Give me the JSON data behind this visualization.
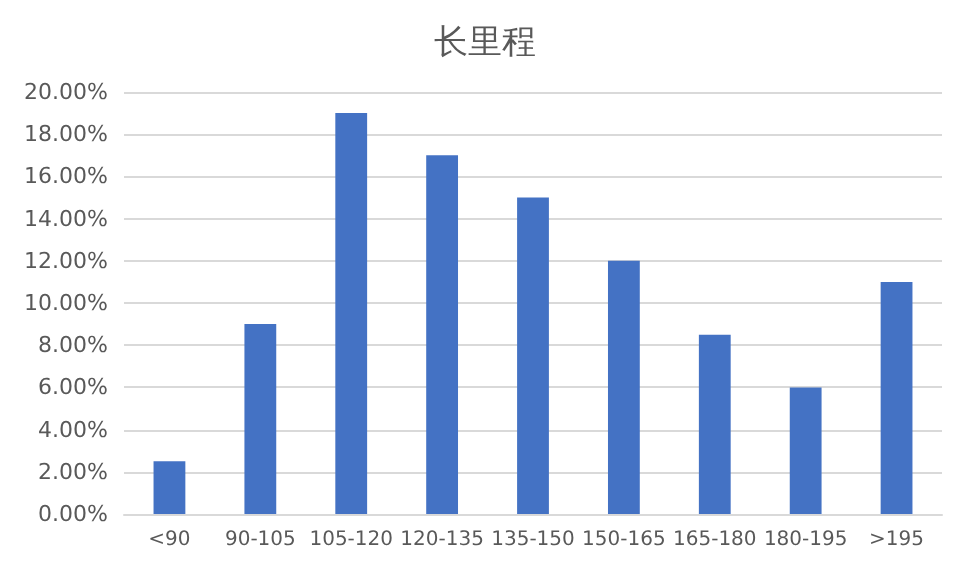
{
  "chart_data": {
    "type": "bar",
    "title": "长里程",
    "categories": [
      "<90",
      "90-105",
      "105-120",
      "120-135",
      "135-150",
      "150-165",
      "165-180",
      "180-195",
      ">195"
    ],
    "values": [
      2.5,
      9,
      19,
      17,
      15,
      12,
      8.5,
      6,
      11
    ],
    "color": "#4472c4",
    "ylim": [
      0,
      20
    ],
    "yticks": [
      {
        "value": 0,
        "label": "0.00%"
      },
      {
        "value": 2,
        "label": "2.00%"
      },
      {
        "value": 4,
        "label": "4.00%"
      },
      {
        "value": 6,
        "label": "6.00%"
      },
      {
        "value": 8,
        "label": "8.00%"
      },
      {
        "value": 10,
        "label": "10.00%"
      },
      {
        "value": 12,
        "label": "12.00%"
      },
      {
        "value": 14,
        "label": "14.00%"
      },
      {
        "value": 16,
        "label": "16.00%"
      },
      {
        "value": 18,
        "label": "18.00%"
      },
      {
        "value": 20,
        "label": "20.00%"
      }
    ],
    "grid": true
  }
}
